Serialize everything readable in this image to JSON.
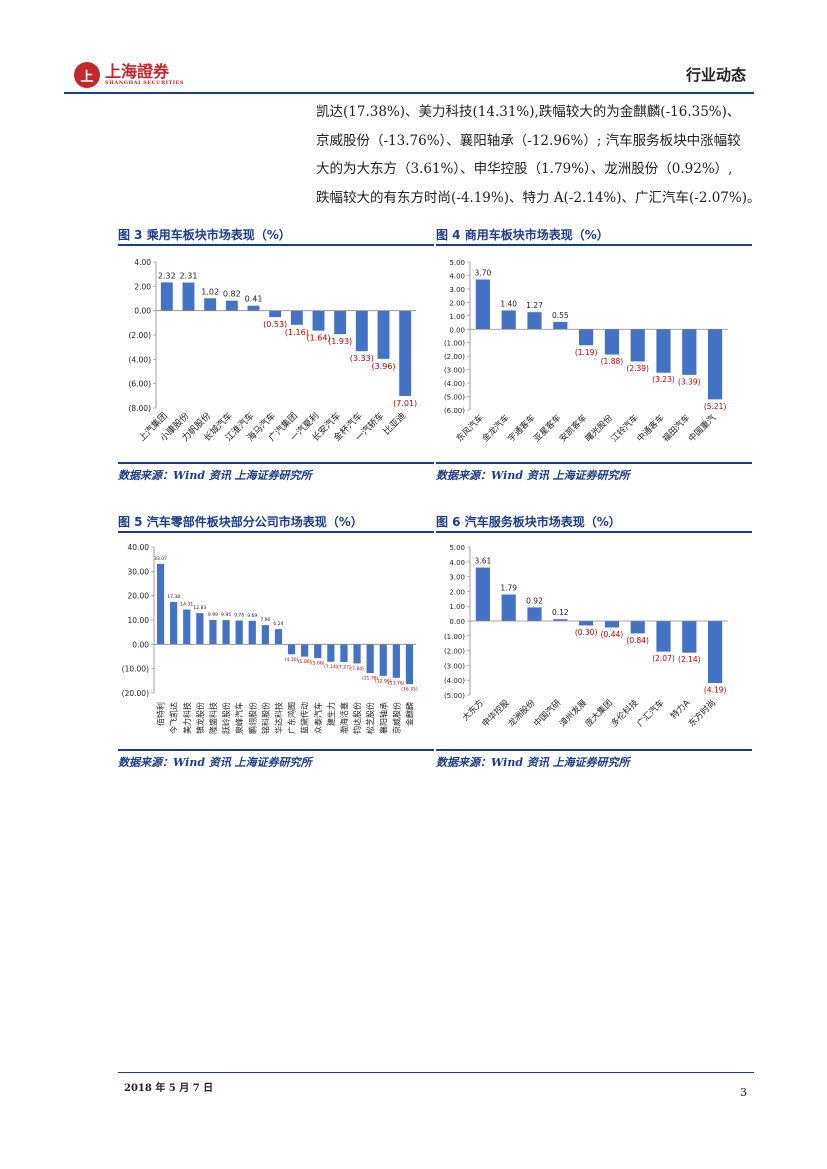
{
  "header": {
    "logo_text": "上海證券",
    "logo_sub": "SHANGHAI SECURITIES",
    "logo_mark": "上",
    "section": "行业动态"
  },
  "body_text": [
    "凯达(17.38%)、美力科技(14.31%),跌幅较大的为金麒麟(-16.35%)、",
    "京威股份（-13.76%）、襄阳轴承（-12.96%）; 汽车服务板块中涨幅较",
    "大的为大东方（3.61%）、申华控股（1.79%）、龙洲股份（0.92%）,",
    "跌幅较大的有东方时尚(-4.19%)、特力 A(-2.14%)、广汇汽车(-2.07%)。"
  ],
  "colors": {
    "bar": "#4472c4",
    "negative_label": "#c00000",
    "title": "#1f3c88"
  },
  "figures": [
    {
      "title": "图 3 乘用车板块市场表现（%）",
      "source": "数据来源：Wind 资讯 上海证券研究所",
      "chart_data": {
        "type": "bar",
        "categories": [
          "上汽集团",
          "小康股份",
          "力帆股份",
          "长城汽车",
          "江淮汽车",
          "海马汽车",
          "广汽集团",
          "一汽夏利",
          "长安汽车",
          "金杯汽车",
          "一汽轿车",
          "比亚迪"
        ],
        "values": [
          2.32,
          2.31,
          1.02,
          0.82,
          0.41,
          -0.53,
          -1.16,
          -1.64,
          -1.93,
          -3.33,
          -3.96,
          -7.01
        ],
        "value_labels": [
          "2.32",
          "2.31",
          "1.02",
          "0.82",
          "0.41",
          "(0.53)",
          "(1.16)",
          "(1.64)",
          "(1.93)",
          "(3.33)",
          "(3.96)",
          "(7.01)"
        ],
        "ylim": [
          -8,
          4
        ],
        "yticks": [
          4,
          2,
          0,
          -2,
          -4,
          -6,
          -8
        ],
        "ytick_labels": [
          "4.00",
          "2.00",
          "0.00",
          "(2.00)",
          "(4.00)",
          "(6.00)",
          "(8.00)"
        ]
      }
    },
    {
      "title": "图 4 商用车板块市场表现（%）",
      "source": "数据来源：Wind 资讯 上海证券研究所",
      "chart_data": {
        "type": "bar",
        "categories": [
          "东风汽车",
          "金龙汽车",
          "宇通客车",
          "亚星客车",
          "安凯客车",
          "曙光股份",
          "江铃汽车",
          "中通客车",
          "福田汽车",
          "中国重汽"
        ],
        "values": [
          3.7,
          1.4,
          1.27,
          0.55,
          -1.19,
          -1.88,
          -2.39,
          -3.23,
          -3.39,
          -5.21
        ],
        "value_labels": [
          "3.70",
          "1.40",
          "1.27",
          "0.55",
          "(1.19)",
          "(1.88)",
          "(2.39)",
          "(3.23)",
          "(3.39)",
          "(5.21)"
        ],
        "ylim": [
          -6,
          5
        ],
        "yticks": [
          5,
          4,
          3,
          2,
          1,
          0,
          -1,
          -2,
          -3,
          -4,
          -5,
          -6
        ],
        "ytick_labels": [
          "5.00",
          "4.00",
          "3.00",
          "2.00",
          "1.00",
          "0.00",
          "(1.00)",
          "(2.00)",
          "(3.00)",
          "(4.00)",
          "(5.00)",
          "(6.00)"
        ]
      }
    },
    {
      "title": "图 5 汽车零部件板块部分公司市场表现（%）",
      "source": "数据来源：Wind 资讯 上海证券研究所",
      "chart_data": {
        "type": "bar",
        "categories": [
          "佰特利",
          "今飞凯达",
          "美力科技",
          "镇龙股份",
          "隆盛科技",
          "跃岭股份",
          "泉峰汽车",
          "鹏翎股份",
          "铭科股份",
          "华达科技",
          "广东鸿图",
          "蓝黛传动",
          "众泰汽车",
          "建生力",
          "渤海活塞",
          "钧达股份",
          "松芝股份",
          "襄阳轴承",
          "京威股份",
          "金麒麟"
        ],
        "values": [
          33.07,
          17.38,
          14.31,
          12.83,
          9.99,
          9.95,
          9.78,
          9.69,
          7.9,
          6.24,
          -4.1,
          -5.06,
          -5.66,
          -7.14,
          -7.27,
          -7.84,
          -11.78,
          -12.96,
          -13.76,
          -16.35
        ],
        "value_labels": [
          "33.07",
          "17.38",
          "14.31",
          "12.83",
          "9.99",
          "9.95",
          "9.78",
          "9.69",
          "7.90",
          "6.24",
          "(4.10)",
          "(5.06)",
          "(5.66)",
          "(7.14)",
          "(7.27)",
          "(7.84)",
          "(11.78)",
          "(12.96)",
          "(13.76)",
          "(16.35)"
        ],
        "ylim": [
          -20,
          40
        ],
        "yticks": [
          40,
          30,
          20,
          10,
          0,
          -10,
          -20
        ],
        "ytick_labels": [
          "40.00",
          "30.00",
          "20.00",
          "10.00",
          "0.00",
          "(10.00)",
          "(20.00)"
        ]
      }
    },
    {
      "title": "图 6 汽车服务板块市场表现（%）",
      "source": "数据来源：Wind 资讯 上海证券研究所",
      "chart_data": {
        "type": "bar",
        "categories": [
          "大东方",
          "申华控股",
          "龙洲股份",
          "中国汽研",
          "漳州发展",
          "庞大集团",
          "多伦科技",
          "广汇汽车",
          "特力A",
          "东方时尚"
        ],
        "values": [
          3.61,
          1.79,
          0.92,
          0.12,
          -0.3,
          -0.44,
          -0.84,
          -2.07,
          -2.14,
          -4.19
        ],
        "value_labels": [
          "3.61",
          "1.79",
          "0.92",
          "0.12",
          "(0.30)",
          "(0.44)",
          "(0.84)",
          "(2.07)",
          "(2.14)",
          "(4.19)"
        ],
        "ylim": [
          -5,
          5
        ],
        "yticks": [
          5,
          4,
          3,
          2,
          1,
          0,
          -1,
          -2,
          -3,
          -4,
          -5
        ],
        "ytick_labels": [
          "5.00",
          "4.00",
          "3.00",
          "2.00",
          "1.00",
          "0.00",
          "(1.00)",
          "(2.00)",
          "(3.00)",
          "(4.00)",
          "(5.00)"
        ]
      }
    }
  ],
  "footer": {
    "date": "2018 年 5 月 7 日",
    "page": "3"
  }
}
